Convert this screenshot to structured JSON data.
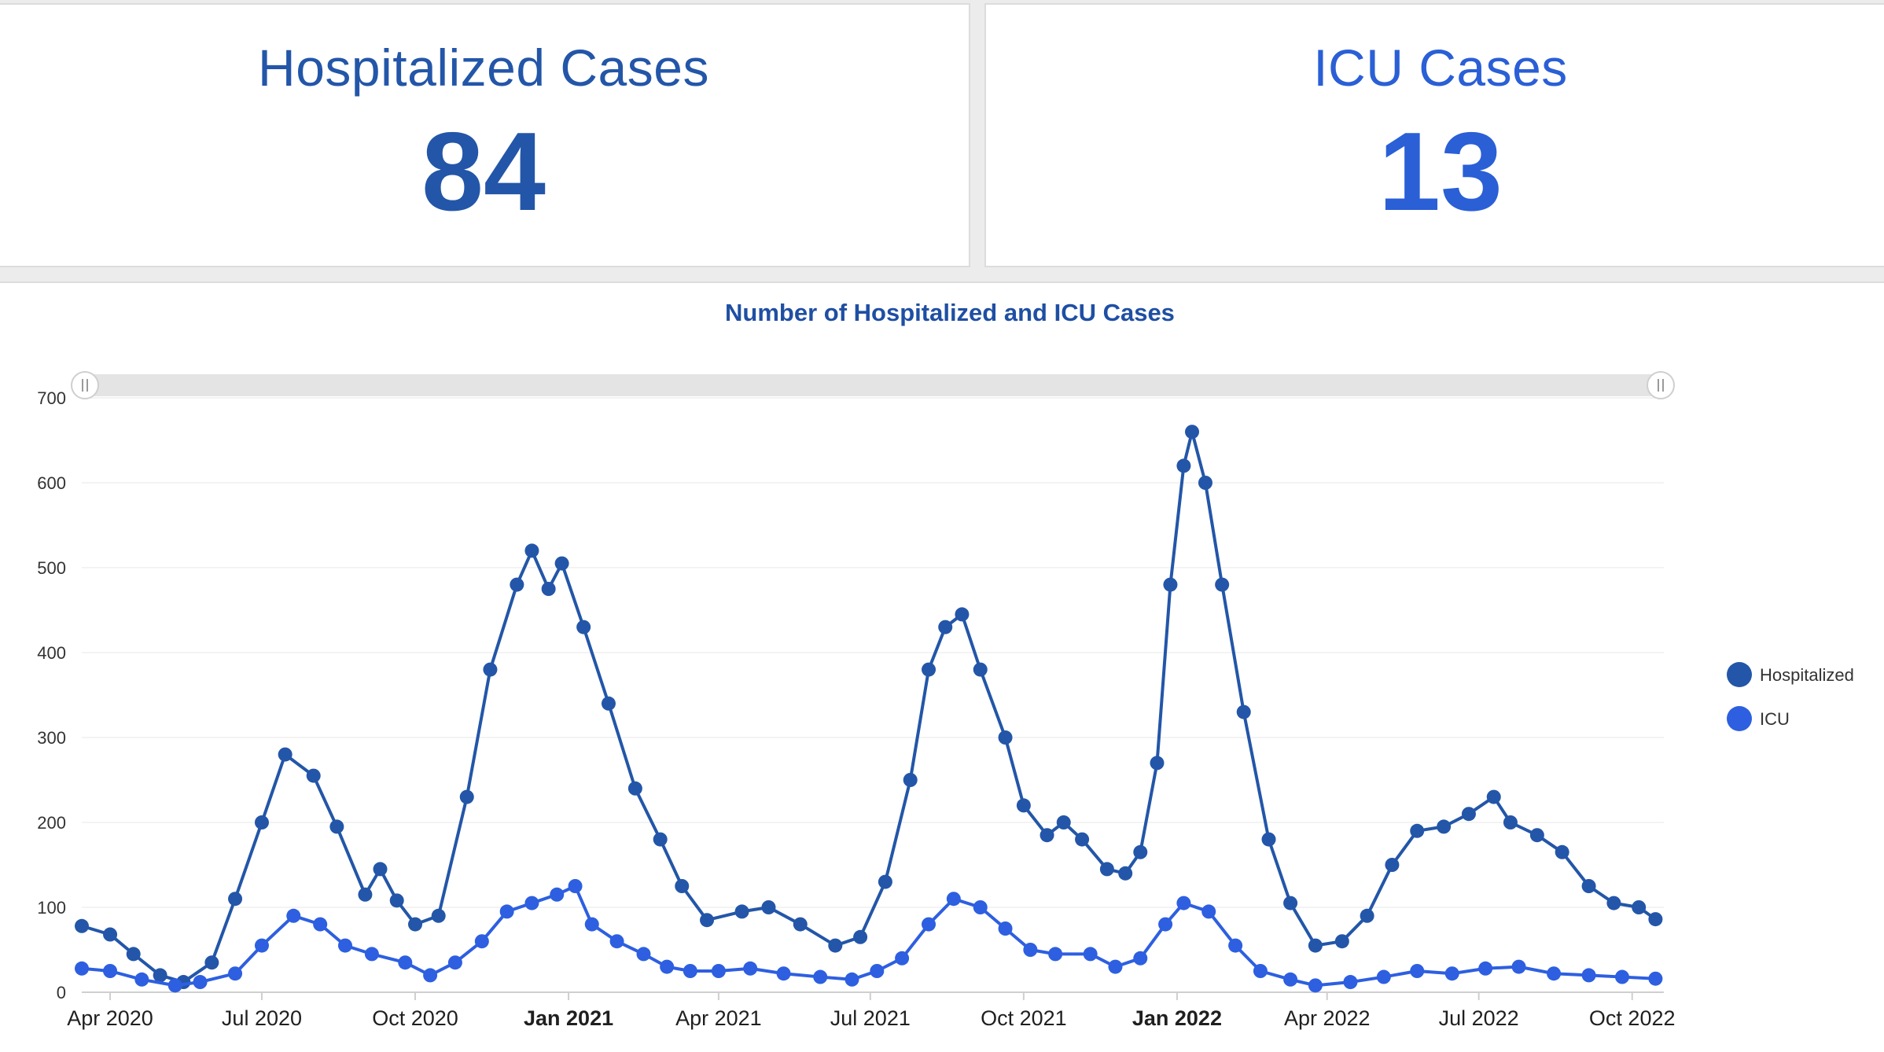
{
  "cards": {
    "hospitalized": {
      "title": "Hospitalized Cases",
      "value": "84"
    },
    "icu": {
      "title": "ICU Cases",
      "value": "13"
    }
  },
  "colors": {
    "hospitalized": "#2356a8",
    "icu": "#2d5fe0",
    "gridline": "#efefef",
    "scrollbar_track": "#e4e4e4"
  },
  "chart_data": {
    "type": "line",
    "title": "Number of Hospitalized and ICU Cases",
    "xlabel": "",
    "ylabel": "",
    "ylim": [
      0,
      700
    ],
    "yticks": [
      0,
      100,
      200,
      300,
      400,
      500,
      600,
      700
    ],
    "xlim": [
      "2020-03-15",
      "2022-10-20"
    ],
    "xticks": [
      {
        "label": "Apr 2020",
        "date": "2020-04-01",
        "bold": false
      },
      {
        "label": "Jul 2020",
        "date": "2020-07-01",
        "bold": false
      },
      {
        "label": "Oct 2020",
        "date": "2020-10-01",
        "bold": false
      },
      {
        "label": "Jan 2021",
        "date": "2021-01-01",
        "bold": true
      },
      {
        "label": "Apr 2021",
        "date": "2021-04-01",
        "bold": false
      },
      {
        "label": "Jul 2021",
        "date": "2021-07-01",
        "bold": false
      },
      {
        "label": "Oct 2021",
        "date": "2021-10-01",
        "bold": false
      },
      {
        "label": "Jan 2022",
        "date": "2022-01-01",
        "bold": true
      },
      {
        "label": "Apr 2022",
        "date": "2022-04-01",
        "bold": false
      },
      {
        "label": "Jul 2022",
        "date": "2022-07-01",
        "bold": false
      },
      {
        "label": "Oct 2022",
        "date": "2022-10-01",
        "bold": false
      }
    ],
    "grid": true,
    "legend": "right",
    "series": [
      {
        "name": "Hospitalized",
        "color": "#2356a8",
        "points": [
          [
            "2020-03-15",
            78
          ],
          [
            "2020-04-01",
            68
          ],
          [
            "2020-04-15",
            45
          ],
          [
            "2020-05-01",
            20
          ],
          [
            "2020-05-15",
            12
          ],
          [
            "2020-06-01",
            35
          ],
          [
            "2020-06-15",
            110
          ],
          [
            "2020-07-01",
            200
          ],
          [
            "2020-07-15",
            280
          ],
          [
            "2020-08-01",
            255
          ],
          [
            "2020-08-15",
            195
          ],
          [
            "2020-09-01",
            115
          ],
          [
            "2020-09-10",
            145
          ],
          [
            "2020-09-20",
            108
          ],
          [
            "2020-10-01",
            80
          ],
          [
            "2020-10-15",
            90
          ],
          [
            "2020-11-01",
            230
          ],
          [
            "2020-11-15",
            380
          ],
          [
            "2020-12-01",
            480
          ],
          [
            "2020-12-10",
            520
          ],
          [
            "2020-12-20",
            475
          ],
          [
            "2020-12-28",
            505
          ],
          [
            "2021-01-10",
            430
          ],
          [
            "2021-01-25",
            340
          ],
          [
            "2021-02-10",
            240
          ],
          [
            "2021-02-25",
            180
          ],
          [
            "2021-03-10",
            125
          ],
          [
            "2021-03-25",
            85
          ],
          [
            "2021-04-15",
            95
          ],
          [
            "2021-05-01",
            100
          ],
          [
            "2021-05-20",
            80
          ],
          [
            "2021-06-10",
            55
          ],
          [
            "2021-06-25",
            65
          ],
          [
            "2021-07-10",
            130
          ],
          [
            "2021-07-25",
            250
          ],
          [
            "2021-08-05",
            380
          ],
          [
            "2021-08-15",
            430
          ],
          [
            "2021-08-25",
            445
          ],
          [
            "2021-09-05",
            380
          ],
          [
            "2021-09-20",
            300
          ],
          [
            "2021-10-01",
            220
          ],
          [
            "2021-10-15",
            185
          ],
          [
            "2021-10-25",
            200
          ],
          [
            "2021-11-05",
            180
          ],
          [
            "2021-11-20",
            145
          ],
          [
            "2021-12-01",
            140
          ],
          [
            "2021-12-10",
            165
          ],
          [
            "2021-12-20",
            270
          ],
          [
            "2021-12-28",
            480
          ],
          [
            "2022-01-05",
            620
          ],
          [
            "2022-01-10",
            660
          ],
          [
            "2022-01-18",
            600
          ],
          [
            "2022-01-28",
            480
          ],
          [
            "2022-02-10",
            330
          ],
          [
            "2022-02-25",
            180
          ],
          [
            "2022-03-10",
            105
          ],
          [
            "2022-03-25",
            55
          ],
          [
            "2022-04-10",
            60
          ],
          [
            "2022-04-25",
            90
          ],
          [
            "2022-05-10",
            150
          ],
          [
            "2022-05-25",
            190
          ],
          [
            "2022-06-10",
            195
          ],
          [
            "2022-06-25",
            210
          ],
          [
            "2022-07-10",
            230
          ],
          [
            "2022-07-20",
            200
          ],
          [
            "2022-08-05",
            185
          ],
          [
            "2022-08-20",
            165
          ],
          [
            "2022-09-05",
            125
          ],
          [
            "2022-09-20",
            105
          ],
          [
            "2022-10-05",
            100
          ],
          [
            "2022-10-15",
            86
          ]
        ]
      },
      {
        "name": "ICU",
        "color": "#2d5fe0",
        "points": [
          [
            "2020-03-15",
            28
          ],
          [
            "2020-04-01",
            25
          ],
          [
            "2020-04-20",
            15
          ],
          [
            "2020-05-10",
            8
          ],
          [
            "2020-05-25",
            12
          ],
          [
            "2020-06-15",
            22
          ],
          [
            "2020-07-01",
            55
          ],
          [
            "2020-07-20",
            90
          ],
          [
            "2020-08-05",
            80
          ],
          [
            "2020-08-20",
            55
          ],
          [
            "2020-09-05",
            45
          ],
          [
            "2020-09-25",
            35
          ],
          [
            "2020-10-10",
            20
          ],
          [
            "2020-10-25",
            35
          ],
          [
            "2020-11-10",
            60
          ],
          [
            "2020-11-25",
            95
          ],
          [
            "2020-12-10",
            105
          ],
          [
            "2020-12-25",
            115
          ],
          [
            "2021-01-05",
            125
          ],
          [
            "2021-01-15",
            80
          ],
          [
            "2021-01-30",
            60
          ],
          [
            "2021-02-15",
            45
          ],
          [
            "2021-03-01",
            30
          ],
          [
            "2021-03-15",
            25
          ],
          [
            "2021-04-01",
            25
          ],
          [
            "2021-04-20",
            28
          ],
          [
            "2021-05-10",
            22
          ],
          [
            "2021-06-01",
            18
          ],
          [
            "2021-06-20",
            15
          ],
          [
            "2021-07-05",
            25
          ],
          [
            "2021-07-20",
            40
          ],
          [
            "2021-08-05",
            80
          ],
          [
            "2021-08-20",
            110
          ],
          [
            "2021-09-05",
            100
          ],
          [
            "2021-09-20",
            75
          ],
          [
            "2021-10-05",
            50
          ],
          [
            "2021-10-20",
            45
          ],
          [
            "2021-11-10",
            45
          ],
          [
            "2021-11-25",
            30
          ],
          [
            "2021-12-10",
            40
          ],
          [
            "2021-12-25",
            80
          ],
          [
            "2022-01-05",
            105
          ],
          [
            "2022-01-20",
            95
          ],
          [
            "2022-02-05",
            55
          ],
          [
            "2022-02-20",
            25
          ],
          [
            "2022-03-10",
            15
          ],
          [
            "2022-03-25",
            8
          ],
          [
            "2022-04-15",
            12
          ],
          [
            "2022-05-05",
            18
          ],
          [
            "2022-05-25",
            25
          ],
          [
            "2022-06-15",
            22
          ],
          [
            "2022-07-05",
            28
          ],
          [
            "2022-07-25",
            30
          ],
          [
            "2022-08-15",
            22
          ],
          [
            "2022-09-05",
            20
          ],
          [
            "2022-09-25",
            18
          ],
          [
            "2022-10-15",
            16
          ]
        ]
      }
    ]
  }
}
